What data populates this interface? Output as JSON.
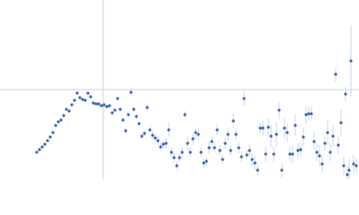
{
  "chart_data": {
    "type": "scatter",
    "xlim": [
      0,
      400
    ],
    "ylim": [
      0,
      200
    ],
    "reference_x": 115,
    "reference_y": 100,
    "reference_color": "#c8d2e8",
    "error_color": "#bfcbe3",
    "series": [
      {
        "color": "#3a66b0",
        "x": [
          41,
          44,
          47,
          50,
          53,
          56,
          59,
          62,
          65,
          68,
          71,
          74,
          77,
          80,
          83,
          86,
          89,
          92,
          95,
          98,
          101,
          104,
          107,
          110,
          113,
          116,
          119,
          122,
          125,
          128,
          131,
          134,
          137,
          140,
          143,
          146,
          149,
          152,
          155,
          158,
          161,
          164,
          167,
          170,
          173,
          176,
          179,
          182,
          185,
          188,
          191,
          194,
          197,
          200,
          203,
          206,
          209,
          212,
          215,
          218,
          221,
          224,
          227,
          230,
          233,
          236,
          239,
          242,
          245,
          248,
          251,
          254,
          257,
          260,
          263,
          266,
          269,
          272,
          275,
          278,
          281,
          284,
          287,
          290,
          293,
          296,
          299,
          302,
          305,
          308,
          311,
          314,
          317,
          320,
          323,
          326,
          329,
          332,
          335,
          338,
          341,
          344,
          347,
          350,
          353,
          356,
          359,
          362,
          365,
          368,
          371,
          374,
          377,
          380,
          383,
          385,
          387,
          389,
          391,
          394,
          397
        ],
        "values": [
          30,
          33,
          36,
          39,
          43,
          47,
          52,
          60,
          64,
          66,
          71,
          78,
          76,
          83,
          88,
          96,
          91,
          89,
          88,
          96,
          92,
          85,
          84,
          84,
          82,
          83,
          81,
          82,
          74,
          77,
          90,
          78,
          66,
          54,
          72,
          97,
          78,
          70,
          62,
          48,
          51,
          80,
          55,
          49,
          46,
          43,
          36,
          39,
          40,
          55,
          30,
          24,
          15,
          24,
          30,
          72,
          40,
          30,
          45,
          52,
          50,
          30,
          18,
          20,
          35,
          42,
          35,
          55,
          32,
          22,
          40,
          50,
          32,
          65,
          50,
          35,
          25,
          90,
          27,
          32,
          22,
          18,
          10,
          57,
          57,
          28,
          58,
          48,
          28,
          50,
          77,
          10,
          57,
          52,
          28,
          28,
          60,
          32,
          33,
          47,
          72,
          73,
          73,
          42,
          30,
          26,
          17,
          40,
          52,
          30,
          48,
          117,
          38,
          63,
          15,
          95,
          5,
          10,
          132,
          17,
          15
        ],
        "errors": [
          1,
          1,
          1,
          1,
          1,
          1,
          1,
          1,
          1,
          1,
          1,
          1,
          1,
          1,
          1,
          1,
          1,
          1,
          1,
          1,
          2,
          2,
          2,
          2,
          2,
          2,
          2,
          2,
          2,
          2,
          2,
          2,
          3,
          3,
          2,
          4,
          3,
          3,
          2,
          3,
          3,
          4,
          4,
          5,
          4,
          5,
          5,
          5,
          6,
          8,
          5,
          5,
          4,
          5,
          6,
          4,
          8,
          5,
          6,
          6,
          6,
          5,
          5,
          5,
          7,
          6,
          6,
          6,
          6,
          5,
          6,
          7,
          6,
          8,
          7,
          7,
          6,
          8,
          5,
          7,
          7,
          8,
          6,
          6,
          8,
          8,
          10,
          12,
          8,
          14,
          10,
          8,
          12,
          10,
          8,
          10,
          12,
          8,
          8,
          10,
          10,
          8,
          8,
          10,
          10,
          12,
          10,
          8,
          14,
          10,
          12,
          8,
          10,
          14,
          10,
          8,
          10,
          12,
          40,
          10,
          8
        ]
      }
    ]
  }
}
